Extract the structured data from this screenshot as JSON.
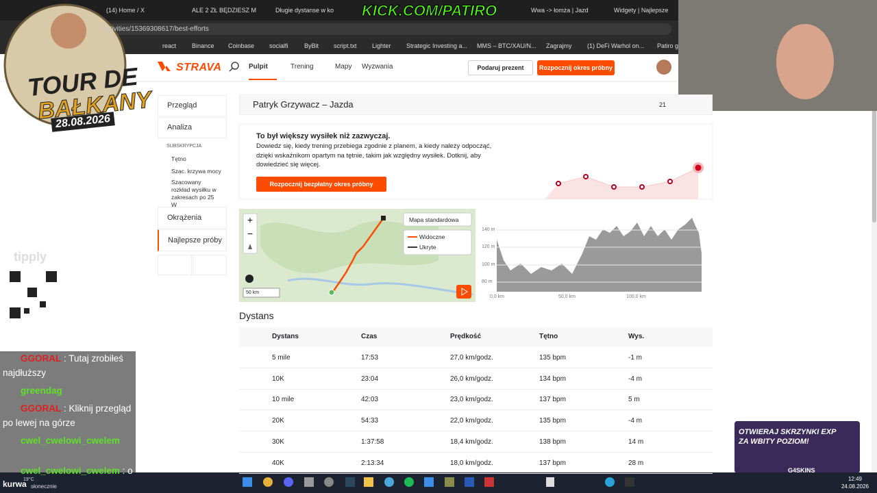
{
  "browser": {
    "tabs": [
      "(14) Home / X",
      "ALE 2 ZŁ BĘDZIESZ M",
      "Długie dystanse w ko",
      "Wwa -> łomża | Jazd",
      "Widgety | Najlepsze"
    ],
    "url": "activities/15369308617/best-efforts",
    "bookmarks": [
      "react",
      "Binance",
      "Coinbase",
      "socialfi",
      "ByBit",
      "script.txt",
      "Lighter",
      "Strategic Investing a...",
      "MMS – BTC/XAU/N...",
      "Zagrajmy",
      "(1) DeFi Warhol on...",
      "Patiro g"
    ]
  },
  "strava": {
    "logo": "STRAVA",
    "nav": [
      "Pulpit",
      "Trening",
      "Mapy",
      "Wyzwania"
    ],
    "gift_button": "Podaruj prezent",
    "trial_button": "Rozpocznij okres próbny",
    "sidebar": {
      "overview": "Przegląd",
      "analysis": "Analiza",
      "subscription": "SUBSKRYPCJA",
      "sub_items": [
        "Tętno",
        "Szac. krzywa mocy",
        "Szacowany rozkład wysiłku w zakresach po 25 W"
      ],
      "laps": "Okrążenia",
      "best_efforts": "Najlepsze próby"
    },
    "activity_title": "Patryk Grzywacz – Jazda",
    "kudos": "21",
    "upsell": {
      "title": "To był większy wysiłek niż zazwyczaj.",
      "body": "Dowiedz się, kiedy trening przebiega zgodnie z planem, a kiedy należy odpocząć, dzięki wskaźnikom opartym na tętnie, takim jak względny wysiłek. Dotknij, aby dowiedzieć się więcej.",
      "button": "Rozpocznij bezpłatny okres próbny"
    },
    "map": {
      "style_select": "Mapa standardowa",
      "legend": [
        "Widoczne",
        "Ukryte"
      ],
      "scale": "50 km"
    },
    "elevation": {
      "y_labels": [
        "140 m",
        "120 m",
        "100 m",
        "80 m"
      ],
      "x_labels": [
        "0,0 km",
        "50,0 km",
        "100,0 km"
      ]
    },
    "section_title": "Dystans",
    "table": {
      "headers": [
        "Dystans",
        "Czas",
        "Prędkość",
        "Tętno",
        "Wys."
      ],
      "rows": [
        [
          "5 mile",
          "17:53",
          "27,0 km/godz.",
          "135 bpm",
          "-1 m"
        ],
        [
          "10K",
          "23:04",
          "26,0 km/godz.",
          "134 bpm",
          "-4 m"
        ],
        [
          "10 mile",
          "42:03",
          "23,0 km/godz.",
          "137 bpm",
          "5 m"
        ],
        [
          "20K",
          "54:33",
          "22,0 km/godz.",
          "135 bpm",
          "-4 m"
        ],
        [
          "30K",
          "1:37:58",
          "18,4 km/godz.",
          "138 bpm",
          "14 m"
        ],
        [
          "40K",
          "2:13:34",
          "18,0 km/godz.",
          "137 bpm",
          "28 m"
        ]
      ]
    }
  },
  "overlay": {
    "logo_line1": "TOUR DE",
    "logo_line2": "BAŁKANY",
    "logo_date": "28.08.2026",
    "kick": "KICK.COM/PATIRO",
    "tipply": "tipply",
    "chat": [
      {
        "user": "GGORAL",
        "text": "Tutaj zrobiłeś najdłuższy"
      },
      {
        "user": "greendag"
      },
      {
        "user": "GGORAL",
        "text": "Kliknij przegląd po lewej na górze"
      },
      {
        "user": "cwel_cwelowi_cwelem"
      },
      {
        "user": "cwel_cwelowi_cwelem",
        "text": "o"
      }
    ],
    "bottom_word": "kurwa",
    "promo_line1": "OTWIERAJ SKRZYNKI EXP",
    "promo_line2": "ZA WBITY POZIOM!",
    "promo_brand": "G4SKINS"
  },
  "taskbar": {
    "temperature": "19°C",
    "weather": "słonecznie",
    "time": "12:49",
    "date": "24.08.2026"
  }
}
